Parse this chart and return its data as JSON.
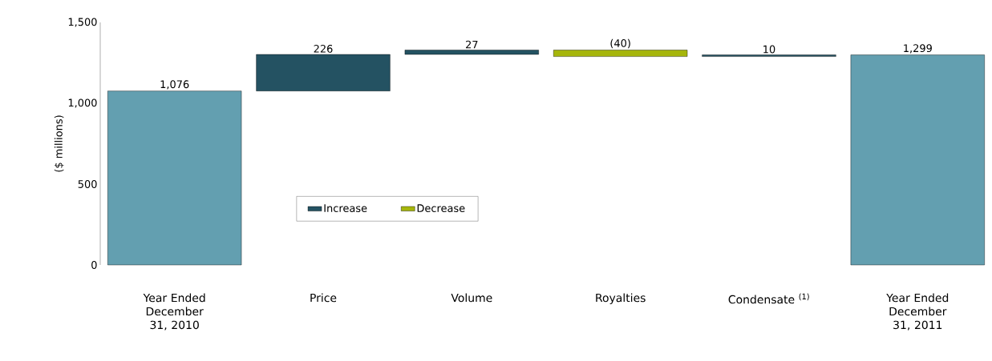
{
  "chart_data": {
    "type": "bar",
    "categories": [
      "Year Ended December 31, 2010",
      "Price",
      "Volume",
      "Royalties",
      "Condensate $^{(1)}$",
      "Year Ended December 31, 2011"
    ],
    "series": [
      {
        "color": "#639fb0",
        "base": [
          0,
          null,
          null,
          null,
          null,
          0
        ],
        "values": [
          1076,
          null,
          null,
          null,
          null,
          1299
        ],
        "value_labels": [
          "1,076",
          null,
          null,
          null,
          null,
          "1,299"
        ]
      },
      {
        "name": "Increase",
        "color": "#245262",
        "base": [
          null,
          1076,
          1302,
          null,
          1289,
          null
        ],
        "values": [
          null,
          226,
          27,
          null,
          10,
          null
        ],
        "value_labels": [
          null,
          "226",
          "27",
          null,
          "10",
          null
        ]
      },
      {
        "name": "Decrease",
        "color": "#a6b60b",
        "base": [
          null,
          null,
          null,
          1289,
          null,
          null
        ],
        "values": [
          null,
          null,
          null,
          40,
          null,
          null
        ],
        "value_labels": [
          null,
          null,
          null,
          "(40)",
          null,
          null
        ]
      }
    ],
    "ylabel": "($ millions)",
    "ylim": [
      0,
      1500
    ],
    "yticks": [
      {
        "value": 0,
        "label": "0"
      },
      {
        "value": 500,
        "label": "500"
      },
      {
        "value": 1000,
        "label": "1,000"
      },
      {
        "value": 1500,
        "label": "1,500"
      }
    ],
    "legend": "bottom left"
  }
}
